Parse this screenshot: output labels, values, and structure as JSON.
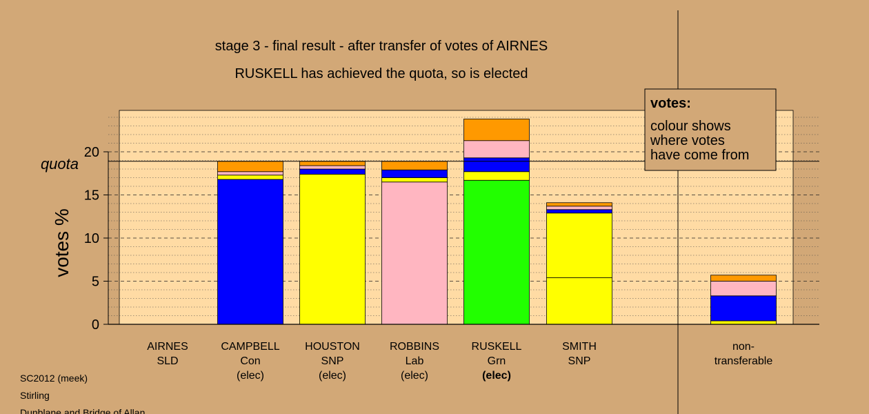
{
  "chart_data": {
    "type": "bar",
    "stacked": true,
    "title": "stage 3 - final result - after transfer of votes of AIRNES",
    "subtitle": "RUSKELL has achieved the quota, so is elected",
    "ylabel": "votes %",
    "ylim": [
      0,
      25
    ],
    "yticks": [
      "0",
      "5",
      "10",
      "15",
      "20"
    ],
    "quota": 18.9,
    "quota_label": "quota",
    "grid": true,
    "categories": [
      {
        "name": "AIRNES",
        "party": "SLD",
        "status": ""
      },
      {
        "name": "CAMPBELL",
        "party": "Con",
        "status": "(elec)"
      },
      {
        "name": "HOUSTON",
        "party": "SNP",
        "status": "(elec)"
      },
      {
        "name": "ROBBINS",
        "party": "Lab",
        "status": "(elec)"
      },
      {
        "name": "RUSKELL",
        "party": "Grn",
        "status": "(elec)"
      },
      {
        "name": "SMITH",
        "party": "SNP",
        "status": ""
      }
    ],
    "bars": [
      [],
      [
        [
          "#0000ff",
          16.8
        ],
        [
          "#ffff00",
          0.5
        ],
        [
          "#ffb6c1",
          0.4
        ],
        [
          "#ff9900",
          1.2
        ]
      ],
      [
        [
          "#ffff00",
          17.4
        ],
        [
          "#0000ff",
          0.6
        ],
        [
          "#ffb6c1",
          0.4
        ],
        [
          "#ff9900",
          0.5
        ]
      ],
      [
        [
          "#ffb6c1",
          16.5
        ],
        [
          "#ffff00",
          0.5
        ],
        [
          "#0000ff",
          0.9
        ],
        [
          "#ff9900",
          1.0
        ]
      ],
      [
        [
          "#22ff00",
          16.7
        ],
        [
          "#ffff00",
          1.0
        ],
        [
          "#0000ff",
          1.6
        ],
        [
          "#ffb6c1",
          2.0
        ],
        [
          "#ff9900",
          2.5
        ]
      ],
      [
        [
          "#ffff00",
          5.4
        ],
        [
          "#ffff00",
          7.5
        ],
        [
          "#0000ff",
          0.4
        ],
        [
          "#ffb6c1",
          0.4
        ],
        [
          "#ff9900",
          0.4
        ]
      ]
    ],
    "nontransferable": {
      "label_line1": "non-",
      "label_line2": "transferable",
      "segments": [
        [
          "#ffff00",
          0.4
        ],
        [
          "#0000ff",
          2.9
        ],
        [
          "#ffb6c1",
          1.7
        ],
        [
          "#ff9900",
          0.7
        ]
      ]
    },
    "legend": {
      "title": "votes:",
      "lines": [
        "colour shows",
        "where votes",
        "have come from"
      ],
      "position": "top-right"
    },
    "footer": [
      "SC2012 (meek)",
      "Stirling",
      "Dunblane and Bridge of Allan"
    ],
    "colors": {
      "background": "#d2a877",
      "plot_background": "#ffdba4",
      "legend_background": "#d2a877"
    }
  }
}
